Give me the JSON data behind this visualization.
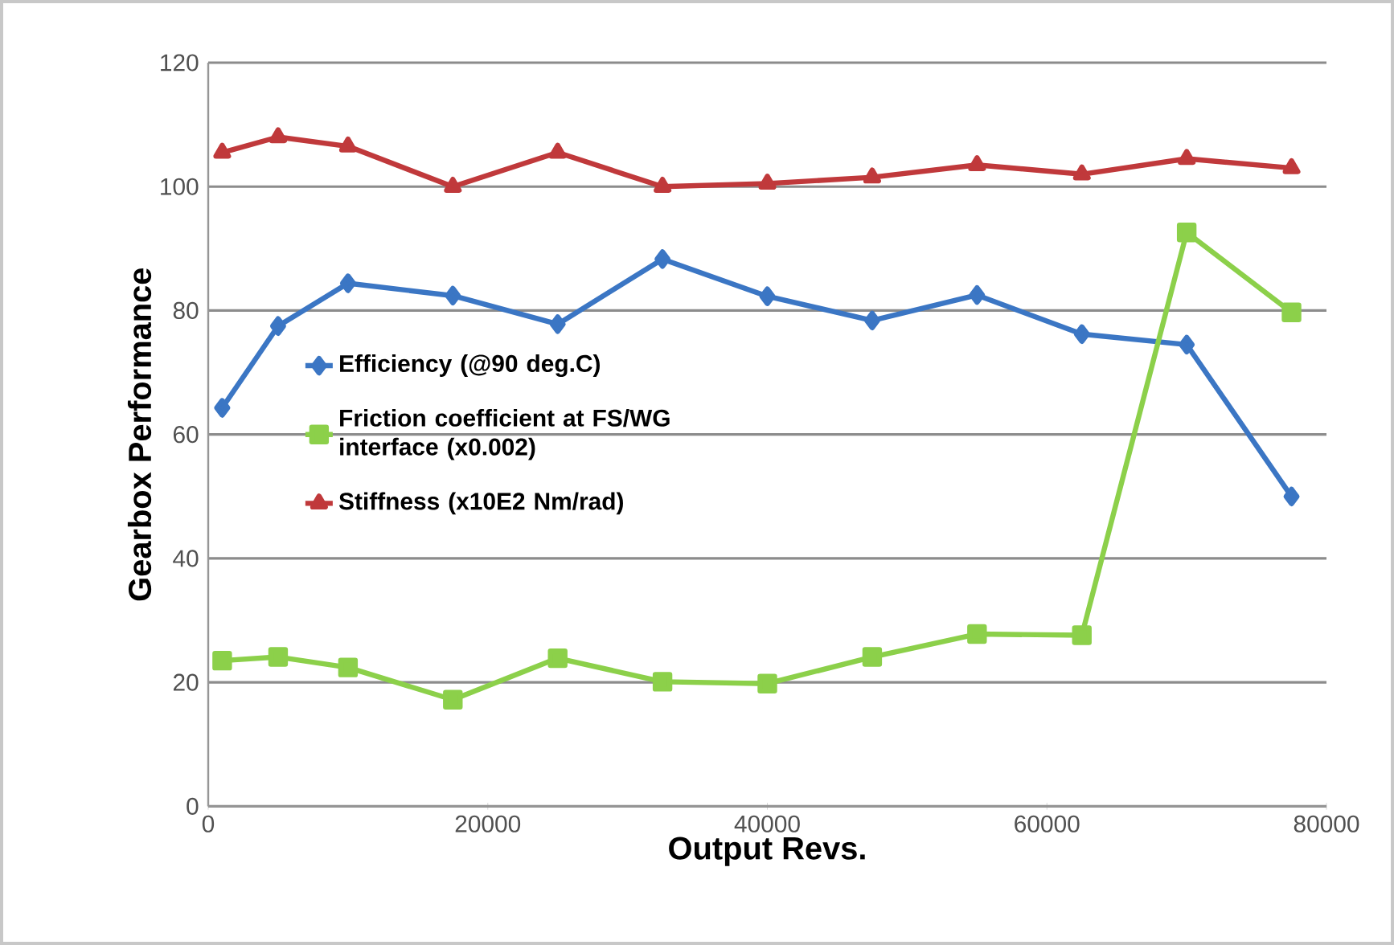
{
  "chart_data": {
    "type": "line",
    "xlabel": "Output Revs.",
    "ylabel": "Gearbox Performance",
    "x": [
      1000,
      5000,
      10000,
      17500,
      25000,
      32500,
      40000,
      47500,
      55000,
      62500,
      70000,
      77500
    ],
    "series": [
      {
        "name": "Efficiency (@90 deg.C)",
        "color": "#3b76c4",
        "marker": "diamond",
        "values": [
          64.3,
          77.5,
          84.4,
          82.4,
          77.8,
          88.3,
          82.3,
          78.4,
          82.5,
          76.2,
          74.5,
          50
        ]
      },
      {
        "name": "Friction coefficient at FS/WG interface (x0.002)",
        "color": "#8cd04a",
        "marker": "square",
        "values": [
          23.5,
          24.1,
          22.4,
          17.2,
          23.9,
          20.1,
          19.8,
          24.1,
          27.8,
          27.6,
          92.6,
          79.7
        ]
      },
      {
        "name": "Stiffness (x10E2 Nm/rad)",
        "color": "#c0393b",
        "marker": "triangle",
        "values": [
          105.5,
          108,
          106.5,
          100,
          105.5,
          100,
          100.5,
          101.5,
          103.5,
          102,
          104.5,
          103
        ]
      }
    ],
    "xlim": [
      0,
      80000
    ],
    "xticks": [
      0,
      20000,
      40000,
      60000,
      80000
    ],
    "ylim": [
      0,
      120
    ],
    "yticks": [
      0,
      20,
      40,
      60,
      80,
      100,
      120
    ],
    "grid": "y",
    "legend": "center left",
    "line_style": "solid"
  }
}
